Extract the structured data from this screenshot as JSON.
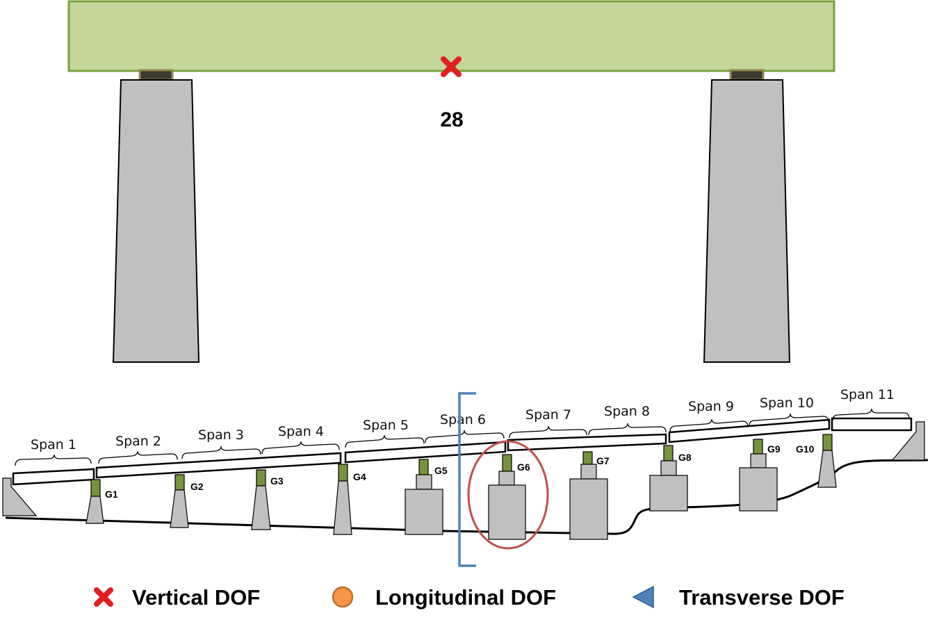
{
  "detail": {
    "node_number": "28"
  },
  "spans": [
    "Span 1",
    "Span 2",
    "Span 3",
    "Span 4",
    "Span 5",
    "Span 6",
    "Span 7",
    "Span 8",
    "Span 9",
    "Span 10",
    "Span 11"
  ],
  "piers": [
    "G1",
    "G2",
    "G3",
    "G4",
    "G5",
    "G6",
    "G7",
    "G8",
    "G9",
    "G10"
  ],
  "legend": {
    "vertical": "Vertical DOF",
    "longitudinal": "Longitudinal DOF",
    "transverse": "Transverse DOF"
  },
  "colors": {
    "deck_green": "#c4d79b",
    "deck_green_border": "#77a33c",
    "pier_gray": "#c0c0c0",
    "bearing": "#3d3a2c",
    "bearing_border": "#938953",
    "marker_red": "#e02020",
    "marker_orange": "#f79646",
    "marker_blue": "#4f81bd",
    "highlight_circle": "#c0504d",
    "bracket_blue": "#4f81bd",
    "pier_cap_green": "#77933c"
  }
}
